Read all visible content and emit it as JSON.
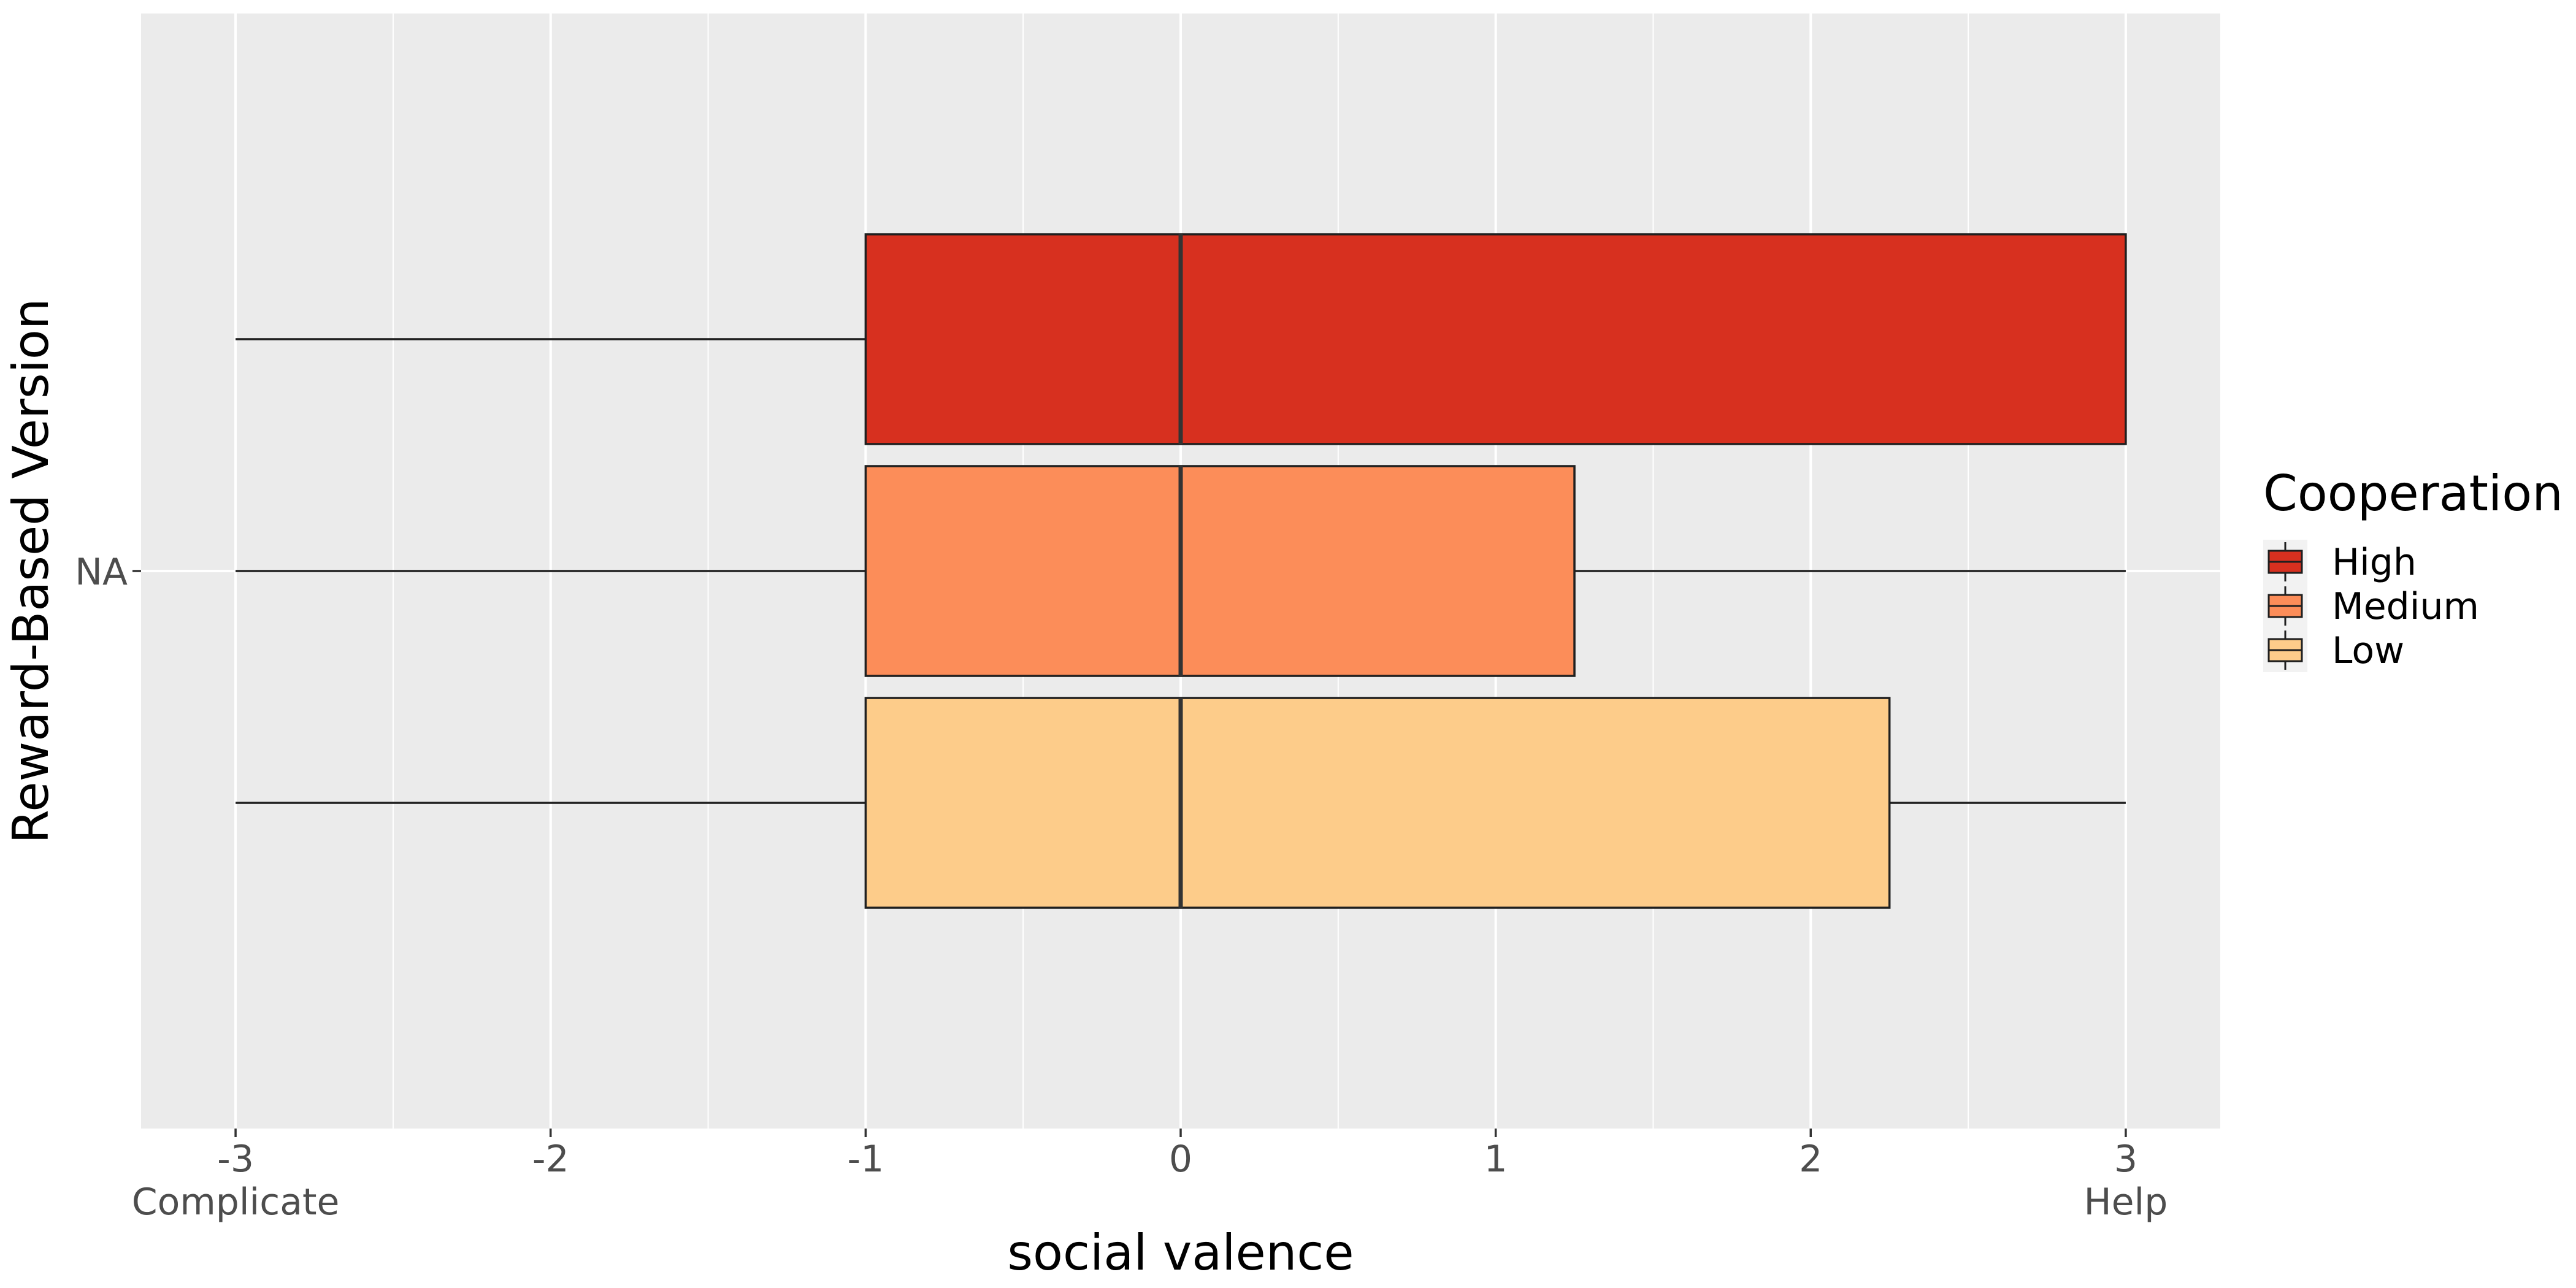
{
  "chart_data": {
    "type": "boxplot",
    "orientation": "horizontal",
    "xlabel": "social valence",
    "ylabel": "Reward-Based Version",
    "xlim": [
      -3.3,
      3.3
    ],
    "x_ticks": [
      -3,
      -2,
      -1,
      0,
      1,
      2,
      3
    ],
    "x_tick_labels": [
      "-3",
      "-2",
      "-1",
      "0",
      "1",
      "2",
      "3"
    ],
    "x_extra_labels": [
      {
        "x": -3,
        "text": "Complicate"
      },
      {
        "x": 3,
        "text": "Help"
      }
    ],
    "categories": [
      "NA"
    ],
    "grid": true,
    "legend": {
      "title": "Cooperation",
      "position": "right"
    },
    "series": [
      {
        "name": "High",
        "color": "#d7301f",
        "whisker_low": -3,
        "q1": -1,
        "median": 0,
        "q3": 3,
        "whisker_high": 3
      },
      {
        "name": "Medium",
        "color": "#fc8d59",
        "whisker_low": -3,
        "q1": -1,
        "median": 0,
        "q3": 1.25,
        "whisker_high": 3
      },
      {
        "name": "Low",
        "color": "#fdcc8a",
        "whisker_low": -3,
        "q1": -1,
        "median": 0,
        "q3": 2.25,
        "whisker_high": 3
      }
    ]
  }
}
